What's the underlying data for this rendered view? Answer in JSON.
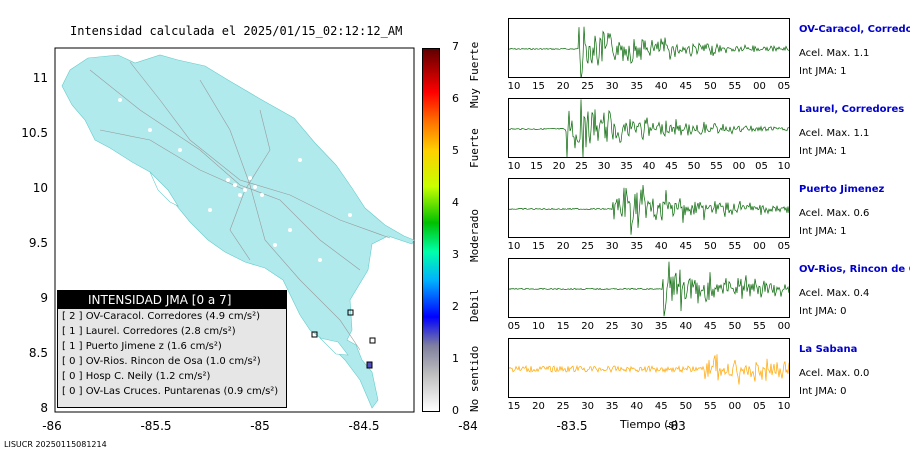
{
  "title": "Intensidad calculada el 2025/01/15_02:12:12_AM",
  "footer": "LISUCR 20250115081214",
  "map": {
    "lon_ticks": [
      "-86",
      "-85.5",
      "-85",
      "-84.5",
      "-84",
      "-83.5",
      "-83"
    ],
    "lat_ticks": [
      "11",
      "10.5",
      "10",
      "9.5",
      "9",
      "8.5",
      "8"
    ],
    "land_color": "#b0eaec"
  },
  "legend": {
    "header": "INTENSIDAD JMA [0 a 7]",
    "rows": [
      "[ 2 ]  OV-Caracol. Corredores (4.9 cm/s²)",
      "[ 1 ]  Laurel. Corredores (2.8 cm/s²)",
      "[ 1 ]  Puerto Jimene z (1.6 cm/s²)",
      "[ 0 ]  OV-Rios. Rincon de Osa (1.0 cm/s²)",
      "[ 0 ]  Hosp C. Neily (1.2 cm/s²)",
      "[ 0 ]  OV-Las Cruces. Puntarenas (0.9 cm/s²)"
    ]
  },
  "colorbar": {
    "ticks": [
      "0",
      "1",
      "2",
      "3",
      "4",
      "5",
      "6",
      "7"
    ],
    "labels": [
      "No sentido",
      "Debil",
      "Moderado",
      "Fuerte",
      "Muy Fuerte"
    ]
  },
  "seismograms": [
    {
      "name": "OV-Caracol, Corredore",
      "accel": "Acel. Max. 1.1",
      "int": "Int JMA: 1",
      "color": "#006400",
      "ticks": [
        "10",
        "15",
        "20",
        "25",
        "30",
        "35",
        "40",
        "45",
        "50",
        "55",
        "00",
        "05"
      ]
    },
    {
      "name": "Laurel, Corredores",
      "accel": "Acel. Max. 1.1",
      "int": "Int JMA: 1",
      "color": "#006400",
      "ticks": [
        "10",
        "15",
        "20",
        "25",
        "30",
        "35",
        "40",
        "45",
        "50",
        "55",
        "00",
        "05",
        "10"
      ]
    },
    {
      "name": "Puerto Jimenez",
      "accel": "Acel. Max. 0.6",
      "int": "Int JMA: 1",
      "color": "#006400",
      "ticks": [
        "10",
        "15",
        "20",
        "25",
        "30",
        "35",
        "40",
        "45",
        "50",
        "55",
        "00",
        "05"
      ]
    },
    {
      "name": "OV-Rios, Rincon de Os",
      "accel": "Acel. Max. 0.4",
      "int": "Int JMA: 0",
      "color": "#006400",
      "ticks": [
        "05",
        "10",
        "15",
        "20",
        "25",
        "30",
        "35",
        "40",
        "45",
        "50",
        "55",
        "00"
      ]
    },
    {
      "name": "La Sabana",
      "accel": "Acel. Max. 0.0",
      "int": "Int JMA: 0",
      "color": "#ffa500",
      "ticks": [
        "15",
        "20",
        "25",
        "30",
        "35",
        "40",
        "45",
        "50",
        "55",
        "00",
        "05",
        "10"
      ]
    }
  ],
  "x_title": "Tiempo (s)",
  "chart_data": {
    "type": "line",
    "title": "Intensidad calculada el 2025/01/15_02:12:12_AM",
    "xlabel": "Tiempo (s)",
    "series": [
      {
        "name": "OV-Caracol, Corredore",
        "acel_max": 1.1,
        "int_jma": 1,
        "onset_frac": 0.25
      },
      {
        "name": "Laurel, Corredores",
        "acel_max": 1.1,
        "int_jma": 1,
        "onset_frac": 0.2
      },
      {
        "name": "Puerto Jimenez",
        "acel_max": 0.6,
        "int_jma": 1,
        "onset_frac": 0.37
      },
      {
        "name": "OV-Rios, Rincon de Os",
        "acel_max": 0.4,
        "int_jma": 0,
        "onset_frac": 0.55
      },
      {
        "name": "La Sabana",
        "acel_max": 0.0,
        "int_jma": 0,
        "onset_frac": 0.7
      }
    ]
  }
}
